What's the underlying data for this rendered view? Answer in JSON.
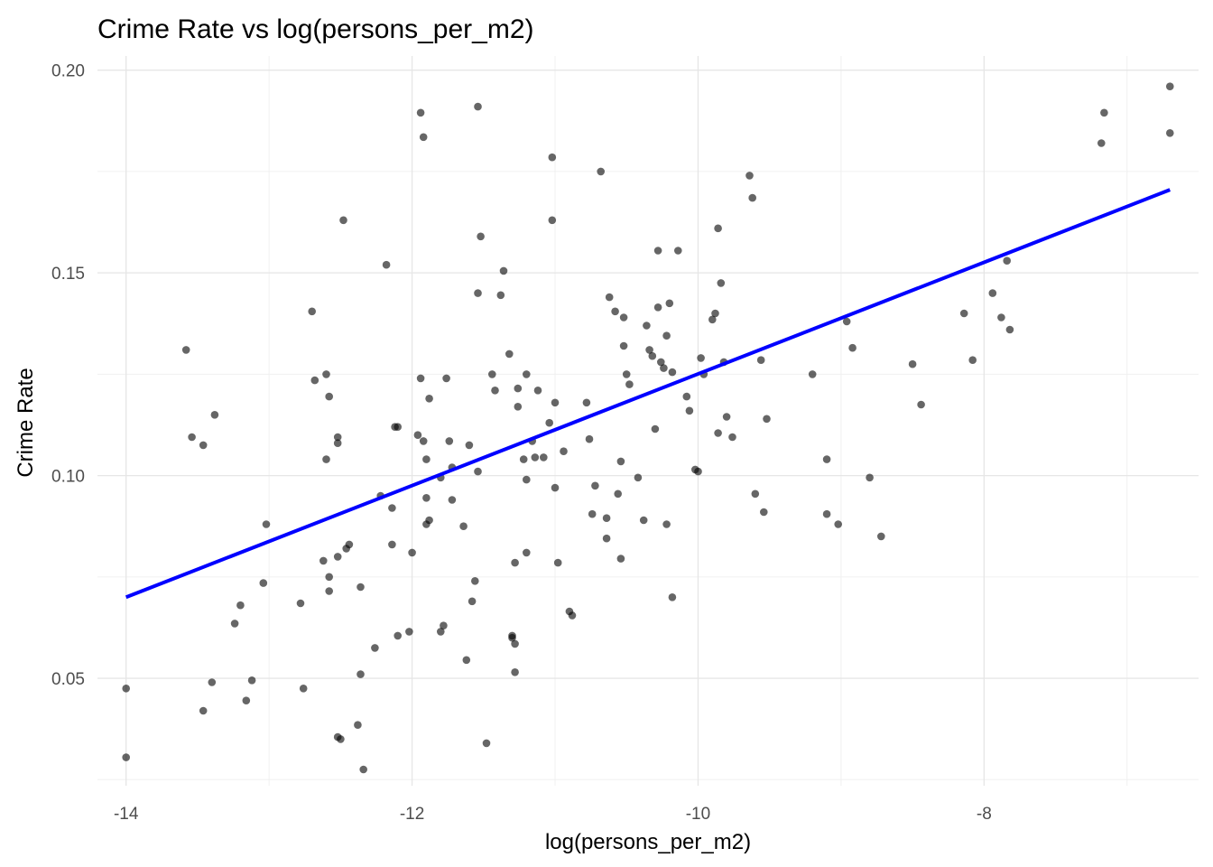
{
  "chart_data": {
    "type": "scatter",
    "title": "Crime Rate vs log(persons_per_m2)",
    "xlabel": "log(persons_per_m2)",
    "ylabel": "Crime Rate",
    "xlim": [
      -14.2,
      -6.5
    ],
    "ylim": [
      0.0235,
      0.2035
    ],
    "x_ticks": [
      -14,
      -12,
      -10,
      -8
    ],
    "x_tick_labels": [
      "-14",
      "-12",
      "-10",
      "-8"
    ],
    "x_minor_ticks": [
      -13,
      -11,
      -9,
      -7
    ],
    "y_ticks": [
      0.05,
      0.1,
      0.15,
      0.2
    ],
    "y_tick_labels": [
      "0.05",
      "0.10",
      "0.15",
      "0.20"
    ],
    "y_minor_ticks": [
      0.025,
      0.075,
      0.125,
      0.175
    ],
    "grid": true,
    "point_color": "#000000",
    "point_opacity": 0.6,
    "trend_color": "#0000ff",
    "trend_line": {
      "x": [
        -14.0,
        -6.7
      ],
      "y": [
        0.07,
        0.1705
      ]
    },
    "points": [
      [
        -14.0,
        0.0475
      ],
      [
        -14.0,
        0.0305
      ],
      [
        -13.58,
        0.131
      ],
      [
        -13.54,
        0.1095
      ],
      [
        -13.46,
        0.1075
      ],
      [
        -13.46,
        0.042
      ],
      [
        -13.4,
        0.049
      ],
      [
        -13.38,
        0.115
      ],
      [
        -13.24,
        0.0635
      ],
      [
        -13.2,
        0.068
      ],
      [
        -13.16,
        0.0445
      ],
      [
        -13.12,
        0.0495
      ],
      [
        -13.04,
        0.0735
      ],
      [
        -13.02,
        0.088
      ],
      [
        -12.78,
        0.0685
      ],
      [
        -12.76,
        0.0475
      ],
      [
        -12.7,
        0.1405
      ],
      [
        -12.68,
        0.1235
      ],
      [
        -12.62,
        0.079
      ],
      [
        -12.6,
        0.125
      ],
      [
        -12.6,
        0.104
      ],
      [
        -12.58,
        0.1195
      ],
      [
        -12.58,
        0.0715
      ],
      [
        -12.58,
        0.075
      ],
      [
        -12.52,
        0.1095
      ],
      [
        -12.52,
        0.108
      ],
      [
        -12.52,
        0.08
      ],
      [
        -12.52,
        0.0355
      ],
      [
        -12.5,
        0.035
      ],
      [
        -12.48,
        0.163
      ],
      [
        -12.46,
        0.082
      ],
      [
        -12.44,
        0.083
      ],
      [
        -12.38,
        0.0385
      ],
      [
        -12.36,
        0.0725
      ],
      [
        -12.36,
        0.051
      ],
      [
        -12.34,
        0.0275
      ],
      [
        -12.26,
        0.0575
      ],
      [
        -12.22,
        0.095
      ],
      [
        -12.18,
        0.152
      ],
      [
        -12.14,
        0.092
      ],
      [
        -12.14,
        0.083
      ],
      [
        -12.12,
        0.112
      ],
      [
        -12.1,
        0.112
      ],
      [
        -12.1,
        0.0605
      ],
      [
        -12.02,
        0.0615
      ],
      [
        -12.0,
        0.081
      ],
      [
        -11.96,
        0.11
      ],
      [
        -11.94,
        0.124
      ],
      [
        -11.94,
        0.1895
      ],
      [
        -11.92,
        0.1835
      ],
      [
        -11.92,
        0.1085
      ],
      [
        -11.9,
        0.104
      ],
      [
        -11.9,
        0.0945
      ],
      [
        -11.9,
        0.088
      ],
      [
        -11.88,
        0.119
      ],
      [
        -11.88,
        0.089
      ],
      [
        -11.8,
        0.0995
      ],
      [
        -11.8,
        0.0615
      ],
      [
        -11.78,
        0.063
      ],
      [
        -11.76,
        0.124
      ],
      [
        -11.74,
        0.1085
      ],
      [
        -11.72,
        0.094
      ],
      [
        -11.72,
        0.102
      ],
      [
        -11.64,
        0.0875
      ],
      [
        -11.62,
        0.0545
      ],
      [
        -11.6,
        0.1075
      ],
      [
        -11.58,
        0.069
      ],
      [
        -11.56,
        0.074
      ],
      [
        -11.54,
        0.101
      ],
      [
        -11.54,
        0.145
      ],
      [
        -11.54,
        0.191
      ],
      [
        -11.52,
        0.159
      ],
      [
        -11.48,
        0.034
      ],
      [
        -11.44,
        0.125
      ],
      [
        -11.42,
        0.121
      ],
      [
        -11.38,
        0.1445
      ],
      [
        -11.36,
        0.1505
      ],
      [
        -11.32,
        0.13
      ],
      [
        -11.3,
        0.06
      ],
      [
        -11.3,
        0.0605
      ],
      [
        -11.28,
        0.0585
      ],
      [
        -11.28,
        0.0515
      ],
      [
        -11.28,
        0.0785
      ],
      [
        -11.26,
        0.1215
      ],
      [
        -11.26,
        0.117
      ],
      [
        -11.22,
        0.104
      ],
      [
        -11.2,
        0.099
      ],
      [
        -11.2,
        0.125
      ],
      [
        -11.2,
        0.081
      ],
      [
        -11.16,
        0.1085
      ],
      [
        -11.14,
        0.1045
      ],
      [
        -11.12,
        0.121
      ],
      [
        -11.08,
        0.1045
      ],
      [
        -11.04,
        0.113
      ],
      [
        -11.02,
        0.1785
      ],
      [
        -11.02,
        0.163
      ],
      [
        -11.0,
        0.118
      ],
      [
        -11.0,
        0.097
      ],
      [
        -10.98,
        0.0785
      ],
      [
        -10.94,
        0.106
      ],
      [
        -10.9,
        0.0665
      ],
      [
        -10.88,
        0.0655
      ],
      [
        -10.78,
        0.118
      ],
      [
        -10.76,
        0.109
      ],
      [
        -10.74,
        0.0905
      ],
      [
        -10.72,
        0.0975
      ],
      [
        -10.68,
        0.175
      ],
      [
        -10.64,
        0.0895
      ],
      [
        -10.64,
        0.0845
      ],
      [
        -10.62,
        0.144
      ],
      [
        -10.58,
        0.1405
      ],
      [
        -10.56,
        0.0955
      ],
      [
        -10.54,
        0.1035
      ],
      [
        -10.54,
        0.0795
      ],
      [
        -10.52,
        0.139
      ],
      [
        -10.52,
        0.132
      ],
      [
        -10.5,
        0.125
      ],
      [
        -10.48,
        0.1225
      ],
      [
        -10.42,
        0.0995
      ],
      [
        -10.38,
        0.089
      ],
      [
        -10.36,
        0.137
      ],
      [
        -10.34,
        0.131
      ],
      [
        -10.32,
        0.1295
      ],
      [
        -10.3,
        0.1115
      ],
      [
        -10.28,
        0.1555
      ],
      [
        -10.28,
        0.1415
      ],
      [
        -10.26,
        0.128
      ],
      [
        -10.24,
        0.1265
      ],
      [
        -10.22,
        0.1345
      ],
      [
        -10.22,
        0.088
      ],
      [
        -10.2,
        0.1425
      ],
      [
        -10.18,
        0.1255
      ],
      [
        -10.18,
        0.07
      ],
      [
        -10.14,
        0.1555
      ],
      [
        -10.08,
        0.1195
      ],
      [
        -10.06,
        0.116
      ],
      [
        -10.02,
        0.1015
      ],
      [
        -10.0,
        0.101
      ],
      [
        -9.98,
        0.129
      ],
      [
        -9.96,
        0.125
      ],
      [
        -9.9,
        0.1385
      ],
      [
        -9.88,
        0.14
      ],
      [
        -9.86,
        0.161
      ],
      [
        -9.86,
        0.1105
      ],
      [
        -9.84,
        0.1475
      ],
      [
        -9.82,
        0.128
      ],
      [
        -9.8,
        0.1145
      ],
      [
        -9.76,
        0.1095
      ],
      [
        -9.64,
        0.174
      ],
      [
        -9.62,
        0.1685
      ],
      [
        -9.6,
        0.0955
      ],
      [
        -9.56,
        0.1285
      ],
      [
        -9.54,
        0.091
      ],
      [
        -9.52,
        0.114
      ],
      [
        -9.2,
        0.125
      ],
      [
        -9.1,
        0.104
      ],
      [
        -9.1,
        0.0905
      ],
      [
        -9.02,
        0.088
      ],
      [
        -8.96,
        0.138
      ],
      [
        -8.92,
        0.1315
      ],
      [
        -8.8,
        0.0995
      ],
      [
        -8.72,
        0.085
      ],
      [
        -8.5,
        0.1275
      ],
      [
        -8.44,
        0.1175
      ],
      [
        -8.14,
        0.14
      ],
      [
        -8.08,
        0.1285
      ],
      [
        -7.94,
        0.145
      ],
      [
        -7.88,
        0.139
      ],
      [
        -7.84,
        0.153
      ],
      [
        -7.82,
        0.136
      ],
      [
        -7.18,
        0.182
      ],
      [
        -7.16,
        0.1895
      ],
      [
        -6.7,
        0.196
      ],
      [
        -6.7,
        0.1845
      ]
    ]
  }
}
